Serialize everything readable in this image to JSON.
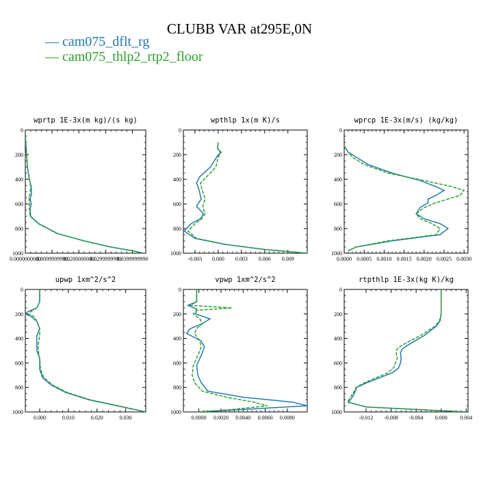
{
  "figure_title": "CLUBB VAR at295E,0N",
  "legend": [
    {
      "label": "cam075_dflt_rg",
      "color": "#1f77b4"
    },
    {
      "label": "cam075_thlp2_rtp2_floor",
      "color": "#2ca02c"
    }
  ],
  "chart_data": [
    {
      "type": "line",
      "title": "wprtp  1E-3x(m kg)/(s kg)",
      "xlim": [
        0.0,
        0.045
      ],
      "ylim": [
        1000,
        0
      ],
      "xticks": [
        0.0,
        0.0099999998,
        0.02,
        0.029999999,
        0.039999999
      ],
      "xtick_labels": [
        "0.0000000000",
        "0.0099999998",
        "0.0200000000",
        "0.0299999990",
        "0.0399999990"
      ],
      "yticks": [
        0,
        200,
        400,
        600,
        800,
        1000
      ],
      "series": [
        {
          "name": "cam075_dflt_rg",
          "y": [
            50,
            150,
            300,
            400,
            460,
            520,
            560,
            600,
            640,
            700,
            760,
            840,
            900,
            950,
            980,
            1000
          ],
          "x": [
            0.0,
            0.0003,
            0.0008,
            0.0015,
            0.0022,
            0.0023,
            0.0018,
            0.0022,
            0.0018,
            0.002,
            0.005,
            0.012,
            0.022,
            0.032,
            0.04,
            0.044
          ]
        },
        {
          "name": "cam075_thlp2_rtp2_floor",
          "y": [
            50,
            150,
            300,
            400,
            460,
            520,
            560,
            600,
            640,
            700,
            760,
            840,
            900,
            950,
            980,
            1000
          ],
          "x": [
            0.0,
            0.0003,
            0.0008,
            0.0015,
            0.002,
            0.0017,
            0.0014,
            0.0016,
            0.0015,
            0.0018,
            0.0048,
            0.0118,
            0.0218,
            0.0318,
            0.0398,
            0.044
          ]
        }
      ]
    },
    {
      "type": "line",
      "title": "wpthlp  1x(m K)/s",
      "xlim": [
        -0.0045,
        0.0115
      ],
      "ylim": [
        1000,
        0
      ],
      "xticks": [
        -0.003,
        0.0,
        0.003,
        0.006,
        0.009
      ],
      "xtick_labels": [
        "-0.003",
        "0.000",
        "0.003",
        "0.006",
        "0.009"
      ],
      "yticks": [
        0,
        200,
        400,
        600,
        800,
        1000
      ],
      "series": [
        {
          "name": "cam075_dflt_rg",
          "y": [
            100,
            150,
            180,
            220,
            300,
            380,
            430,
            480,
            560,
            620,
            680,
            720,
            760,
            820,
            880,
            930,
            970,
            1000
          ],
          "x": [
            0.0,
            -0.0001,
            0.0003,
            -0.0002,
            -0.001,
            -0.0024,
            -0.0028,
            -0.0025,
            -0.0022,
            -0.0028,
            -0.0019,
            -0.0023,
            -0.0035,
            -0.0044,
            -0.003,
            0.001,
            0.006,
            0.0115
          ]
        },
        {
          "name": "cam075_thlp2_rtp2_floor",
          "y": [
            100,
            150,
            180,
            220,
            300,
            380,
            430,
            480,
            560,
            620,
            680,
            720,
            760,
            820,
            880,
            930,
            970,
            1000
          ],
          "x": [
            0.0,
            -0.0001,
            0.0004,
            0.0,
            -0.0003,
            -0.0015,
            -0.0023,
            -0.0021,
            -0.0017,
            -0.002,
            -0.0017,
            -0.0021,
            -0.003,
            -0.0039,
            -0.0028,
            0.0011,
            0.0061,
            0.0115
          ]
        }
      ]
    },
    {
      "type": "line",
      "title": "wprcp  1E-3x(m/s) (kg/kg)",
      "xlim": [
        0.0,
        0.0031
      ],
      "ylim": [
        1000,
        0
      ],
      "xticks": [
        0.0,
        0.0005,
        0.001,
        0.0015,
        0.002,
        0.0025,
        0.003
      ],
      "xtick_labels": [
        "0.0000",
        "0.0005",
        "0.0010",
        "0.0015",
        "0.0020",
        "0.0025",
        "0.0030"
      ],
      "yticks": [
        0,
        200,
        400,
        600,
        800,
        1000
      ],
      "series": [
        {
          "name": "cam075_dflt_rg",
          "y": [
            130,
            180,
            220,
            280,
            350,
            410,
            460,
            490,
            530,
            560,
            590,
            630,
            680,
            720,
            760,
            800,
            850,
            900,
            950,
            980
          ],
          "x": [
            0.0,
            0.0001,
            0.0003,
            0.0006,
            0.0012,
            0.0019,
            0.0023,
            0.0025,
            0.0023,
            0.0021,
            0.0021,
            0.0019,
            0.0018,
            0.002,
            0.0024,
            0.0026,
            0.0024,
            0.0012,
            0.0003,
            0.0001
          ]
        },
        {
          "name": "cam075_thlp2_rtp2_floor",
          "y": [
            130,
            180,
            220,
            280,
            350,
            410,
            460,
            490,
            530,
            560,
            590,
            630,
            680,
            720,
            760,
            800,
            850,
            900,
            950,
            980
          ],
          "x": [
            0.0,
            0.0001,
            0.0002,
            0.0005,
            0.0011,
            0.002,
            0.0027,
            0.003,
            0.0029,
            0.0026,
            0.0023,
            0.002,
            0.0018,
            0.0019,
            0.0022,
            0.0024,
            0.0023,
            0.0011,
            0.0003,
            0.0001
          ]
        }
      ]
    },
    {
      "type": "line",
      "title": "upwp  1xm^2/s^2",
      "xlim": [
        -0.005,
        0.037
      ],
      "ylim": [
        1000,
        0
      ],
      "xticks": [
        0.0,
        0.01,
        0.02,
        0.03
      ],
      "xtick_labels": [
        "0.000",
        "0.010",
        "0.020",
        "0.030"
      ],
      "yticks": [
        0,
        200,
        400,
        600,
        800,
        1000
      ],
      "series": [
        {
          "name": "cam075_dflt_rg",
          "y": [
            0,
            100,
            150,
            180,
            200,
            220,
            260,
            320,
            380,
            450,
            500,
            560,
            650,
            720,
            780,
            840,
            900,
            950,
            1000
          ],
          "x": [
            0.0,
            0.0,
            -0.001,
            -0.004,
            -0.005,
            -0.003,
            -0.001,
            0.0,
            -0.001,
            -0.001,
            -0.001,
            0.0,
            0.0,
            0.001,
            0.004,
            0.009,
            0.017,
            0.027,
            0.037
          ]
        },
        {
          "name": "cam075_thlp2_rtp2_floor",
          "y": [
            0,
            100,
            150,
            180,
            200,
            220,
            260,
            320,
            380,
            450,
            500,
            560,
            650,
            720,
            780,
            840,
            900,
            950,
            1000
          ],
          "x": [
            0.0,
            0.0,
            -0.001,
            -0.003,
            -0.004,
            -0.002,
            -0.001,
            0.0,
            0.0,
            -0.0005,
            -0.0005,
            0.0,
            0.0003,
            0.0015,
            0.0045,
            0.0095,
            0.0175,
            0.0275,
            0.037
          ]
        }
      ]
    },
    {
      "type": "line",
      "title": "vpwp  1xm^2/s^2",
      "xlim": [
        -0.0014,
        0.0098
      ],
      "ylim": [
        1000,
        0
      ],
      "xticks": [
        0.0,
        0.002,
        0.004,
        0.006,
        0.008
      ],
      "xtick_labels": [
        "0.0000",
        "0.0020",
        "0.0040",
        "0.0060",
        "0.0080"
      ],
      "yticks": [
        0,
        200,
        400,
        600,
        800,
        1000
      ],
      "series": [
        {
          "name": "cam075_dflt_rg",
          "y": [
            0,
            100,
            130,
            160,
            200,
            240,
            280,
            320,
            360,
            420,
            470,
            520,
            620,
            700,
            760,
            830,
            880,
            920,
            950,
            980,
            1000
          ],
          "x": [
            -0.0002,
            -0.0002,
            -0.001,
            -0.0002,
            -0.0003,
            0.001,
            0.0003,
            -0.0008,
            -0.0011,
            0.0002,
            0.0005,
            0.0003,
            -0.0002,
            -0.0001,
            0.0002,
            0.0008,
            0.004,
            0.0085,
            0.0098,
            0.004,
            0.0
          ]
        },
        {
          "name": "cam075_thlp2_rtp2_floor",
          "y": [
            0,
            100,
            130,
            150,
            170,
            200,
            240,
            280,
            320,
            360,
            420,
            470,
            520,
            620,
            700,
            760,
            830,
            880,
            920,
            950,
            980,
            1000
          ],
          "x": [
            -0.0002,
            -0.0002,
            -0.0008,
            0.003,
            -0.0002,
            -0.0005,
            0.0001,
            0.0003,
            -0.0002,
            -0.0004,
            0.0001,
            0.0002,
            0.0,
            -0.0005,
            -0.0006,
            -0.0004,
            0.0003,
            0.0025,
            0.005,
            0.0062,
            0.003,
            0.0
          ]
        }
      ]
    },
    {
      "type": "line",
      "title": "rtpthlp  1E-3x(kg K)/kg",
      "xlim": [
        -0.0155,
        0.0043
      ],
      "ylim": [
        1000,
        0
      ],
      "xticks": [
        -0.012,
        -0.008,
        -0.004,
        0.0,
        0.004
      ],
      "xtick_labels": [
        "-0.012",
        "-0.008",
        "-0.004",
        "0.000",
        "0.004"
      ],
      "yticks": [
        0,
        200,
        400,
        600,
        800,
        1000
      ],
      "series": [
        {
          "name": "cam075_dflt_rg",
          "y": [
            0,
            100,
            200,
            260,
            300,
            340,
            380,
            420,
            460,
            490,
            520,
            560,
            600,
            640,
            680,
            720,
            760,
            800,
            840,
            880,
            920,
            960,
            1000
          ],
          "x": [
            0.0,
            0.0,
            0.0,
            -0.0002,
            -0.0008,
            -0.0018,
            -0.0028,
            -0.0042,
            -0.0055,
            -0.0063,
            -0.0065,
            -0.0064,
            -0.0065,
            -0.0068,
            -0.0078,
            -0.0098,
            -0.0118,
            -0.0135,
            -0.0138,
            -0.0142,
            -0.0148,
            -0.012,
            0.004
          ]
        },
        {
          "name": "cam075_thlp2_rtp2_floor",
          "y": [
            0,
            100,
            200,
            260,
            300,
            340,
            380,
            420,
            460,
            490,
            520,
            560,
            600,
            640,
            680,
            720,
            760,
            800,
            840,
            880,
            920,
            960,
            1000
          ],
          "x": [
            0.0,
            0.0,
            0.0,
            -0.0003,
            -0.001,
            -0.0022,
            -0.0034,
            -0.005,
            -0.0064,
            -0.0071,
            -0.0072,
            -0.007,
            -0.0073,
            -0.0076,
            -0.0085,
            -0.0104,
            -0.0122,
            -0.0136,
            -0.014,
            -0.0145,
            -0.015,
            -0.0118,
            0.004
          ]
        }
      ]
    }
  ]
}
